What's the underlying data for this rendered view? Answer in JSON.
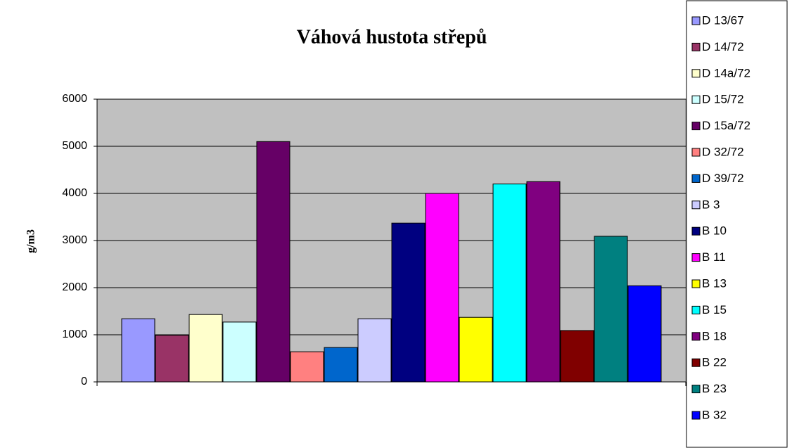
{
  "chart_data": {
    "type": "bar",
    "title": "Váhová hustota střepů",
    "y_label": "g/m3",
    "ylim": [
      0,
      6000
    ],
    "yticks": [
      0,
      1000,
      2000,
      3000,
      4000,
      5000,
      6000
    ],
    "grid": true,
    "legend": "right",
    "series": [
      {
        "name": "D 13/67",
        "color": "#9999FF",
        "values": [
          1340
        ]
      },
      {
        "name": "D 14/72",
        "color": "#993366",
        "values": [
          990
        ]
      },
      {
        "name": "D 14a/72",
        "color": "#FFFFCC",
        "values": [
          1430
        ]
      },
      {
        "name": "D 15/72",
        "color": "#CCFFFF",
        "values": [
          1270
        ]
      },
      {
        "name": "D 15a/72",
        "color": "#660066",
        "values": [
          5100
        ]
      },
      {
        "name": "D 32/72",
        "color": "#FF8080",
        "values": [
          640
        ]
      },
      {
        "name": "D 39/72",
        "color": "#0066CC",
        "values": [
          730
        ]
      },
      {
        "name": "B 3",
        "color": "#CCCCFF",
        "values": [
          1340
        ]
      },
      {
        "name": "B 10",
        "color": "#000080",
        "values": [
          3370
        ]
      },
      {
        "name": "B 11",
        "color": "#FF00FF",
        "values": [
          4000
        ]
      },
      {
        "name": "B 13",
        "color": "#FFFF00",
        "values": [
          1370
        ]
      },
      {
        "name": "B 15",
        "color": "#00FFFF",
        "values": [
          4200
        ]
      },
      {
        "name": "B 18",
        "color": "#800080",
        "values": [
          4250
        ]
      },
      {
        "name": "B 22",
        "color": "#800000",
        "values": [
          1090
        ]
      },
      {
        "name": "B 23",
        "color": "#008080",
        "values": [
          3090
        ]
      },
      {
        "name": "B 32",
        "color": "#0000FF",
        "values": [
          2040
        ]
      }
    ]
  }
}
